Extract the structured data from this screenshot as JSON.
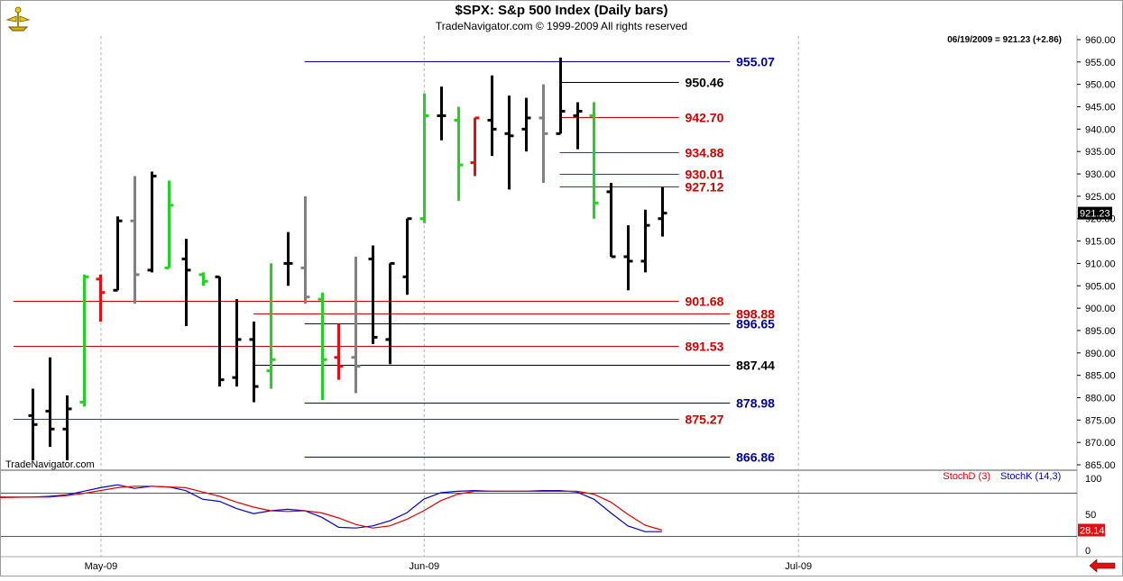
{
  "header": {
    "title": "$SPX:  S&p 500 Index  (Daily bars)",
    "subtitle": "TradeNavigator.com © 1999-2009 All rights reserved",
    "quote": "06/19/2009 = 921.23 (+2.86)",
    "watermark": "TradeNavigator.com"
  },
  "colors": {
    "up": "#1fd31f",
    "down": "#e01010",
    "neutral": "#000000",
    "inside": "#808080",
    "red_level": "#cc0000",
    "blue_level": "#00009a",
    "black_level": "#000000",
    "stochK": "#0000cc",
    "stochD": "#dd0000"
  },
  "chart_data": [
    {
      "type": "ohlc",
      "title": "$SPX:  S&p 500 Index  (Daily bars)",
      "ylim": [
        864,
        961
      ],
      "yticks": [
        "960.00",
        "955.00",
        "950.00",
        "945.00",
        "940.00",
        "935.00",
        "930.00",
        "925.00",
        "920.00",
        "915.00",
        "910.00",
        "905.00",
        "900.00",
        "895.00",
        "890.00",
        "885.00",
        "880.00",
        "875.00",
        "870.00",
        "865.00"
      ],
      "current_price_label": "921.23",
      "x_labels": [
        {
          "label": "May-09",
          "day": 4
        },
        {
          "label": "Jun-09",
          "day": 23
        },
        {
          "label": "Jul-09",
          "day": 45
        }
      ],
      "bars": [
        {
          "d": 0,
          "o": 876,
          "h": 882,
          "l": 866,
          "c": 874,
          "col": "neutral"
        },
        {
          "d": 1,
          "o": 877,
          "h": 889,
          "l": 869,
          "c": 873,
          "col": "neutral"
        },
        {
          "d": 2,
          "o": 873,
          "h": 880.5,
          "l": 866,
          "c": 877.5,
          "col": "neutral"
        },
        {
          "d": 3,
          "o": 879,
          "h": 907.5,
          "l": 878,
          "c": 907,
          "col": "up"
        },
        {
          "d": 4,
          "o": 906.5,
          "h": 907.5,
          "l": 897,
          "c": 903.5,
          "col": "down"
        },
        {
          "d": 5,
          "o": 904,
          "h": 920.5,
          "l": 904,
          "c": 919.5,
          "col": "neutral"
        },
        {
          "d": 6,
          "o": 919.5,
          "h": 929.5,
          "l": 901,
          "c": 907.5,
          "col": "inside"
        },
        {
          "d": 7,
          "o": 908.5,
          "h": 930.5,
          "l": 908,
          "c": 929.5,
          "col": "neutral"
        },
        {
          "d": 8,
          "o": 909,
          "h": 928.5,
          "l": 909,
          "c": 923,
          "col": "up"
        },
        {
          "d": 9,
          "o": 911,
          "h": 915.5,
          "l": 896,
          "c": 908.5,
          "col": "neutral"
        },
        {
          "d": 10,
          "o": 907.5,
          "h": 908,
          "l": 905,
          "c": 906,
          "col": "up"
        },
        {
          "d": 11,
          "o": 907,
          "h": 907,
          "l": 882.5,
          "c": 884,
          "col": "neutral"
        },
        {
          "d": 12,
          "o": 884.5,
          "h": 902,
          "l": 882.5,
          "c": 893,
          "col": "neutral"
        },
        {
          "d": 13,
          "o": 893,
          "h": 897,
          "l": 879,
          "c": 882.5,
          "col": "neutral"
        },
        {
          "d": 14,
          "o": 886,
          "h": 910,
          "l": 882,
          "c": 888.5,
          "col": "up"
        },
        {
          "d": 15,
          "o": 910,
          "h": 917,
          "l": 905,
          "c": 910,
          "col": "neutral"
        },
        {
          "d": 16,
          "o": 909,
          "h": 925,
          "l": 901,
          "c": 902.5,
          "col": "inside"
        },
        {
          "d": 17,
          "o": 902,
          "h": 903.5,
          "l": 879.5,
          "c": 888.5,
          "col": "up"
        },
        {
          "d": 18,
          "o": 889,
          "h": 896.5,
          "l": 884,
          "c": 887,
          "col": "down"
        },
        {
          "d": 19,
          "o": 889,
          "h": 911.5,
          "l": 881,
          "c": 887,
          "col": "inside"
        },
        {
          "d": 20,
          "o": 911,
          "h": 914,
          "l": 892,
          "c": 893.5,
          "col": "neutral"
        },
        {
          "d": 21,
          "o": 893,
          "h": 910,
          "l": 887.5,
          "c": 910,
          "col": "neutral"
        },
        {
          "d": 22,
          "o": 907,
          "h": 920,
          "l": 903,
          "c": 920,
          "col": "neutral"
        },
        {
          "d": 23,
          "o": 920,
          "h": 948,
          "l": 919,
          "c": 943,
          "col": "up"
        },
        {
          "d": 24,
          "o": 943,
          "h": 949.5,
          "l": 937.5,
          "c": 943,
          "col": "neutral"
        },
        {
          "d": 25,
          "o": 942,
          "h": 945,
          "l": 924,
          "c": 932,
          "col": "up"
        },
        {
          "d": 26,
          "o": 932.5,
          "h": 942.5,
          "l": 929.5,
          "c": 942.5,
          "col": "down"
        },
        {
          "d": 27,
          "o": 942,
          "h": 952,
          "l": 934,
          "c": 940,
          "col": "neutral"
        },
        {
          "d": 28,
          "o": 939,
          "h": 947.5,
          "l": 926.5,
          "c": 938.5,
          "col": "neutral"
        },
        {
          "d": 29,
          "o": 940,
          "h": 947,
          "l": 935,
          "c": 942.5,
          "col": "neutral"
        },
        {
          "d": 30,
          "o": 942.5,
          "h": 950,
          "l": 928,
          "c": 939,
          "col": "inside"
        },
        {
          "d": 31,
          "o": 939,
          "h": 956,
          "l": 939,
          "c": 944,
          "col": "neutral"
        },
        {
          "d": 32,
          "o": 943,
          "h": 946,
          "l": 935.5,
          "c": 944,
          "col": "neutral"
        },
        {
          "d": 33,
          "o": 943,
          "h": 946,
          "l": 920,
          "c": 923.5,
          "col": "up"
        },
        {
          "d": 34,
          "o": 926,
          "h": 928,
          "l": 911.5,
          "c": 911.5,
          "col": "neutral"
        },
        {
          "d": 35,
          "o": 911.5,
          "h": 918.5,
          "l": 904,
          "c": 910.5,
          "col": "neutral"
        },
        {
          "d": 36,
          "o": 910.5,
          "h": 922,
          "l": 908,
          "c": 918.5,
          "col": "neutral"
        },
        {
          "d": 37,
          "o": 920,
          "h": 927,
          "l": 916,
          "c": 921.23,
          "col": "neutral"
        }
      ],
      "levels": [
        {
          "value": 955.07,
          "label": "955.07",
          "color": "blue_level",
          "d0": 16,
          "d1": 41,
          "label_d": 42.5
        },
        {
          "value": 950.46,
          "label": "950.46",
          "color": "black_level",
          "d0": 31,
          "d1": 38,
          "label_d": 39.5
        },
        {
          "value": 942.7,
          "label": "942.70",
          "color": "red_level",
          "d0": 31,
          "d1": 38,
          "label_d": 39.5
        },
        {
          "value": 934.88,
          "label": "934.88",
          "color": "red_level",
          "d0": 31,
          "d1": 38,
          "label_d": 39.5
        },
        {
          "value": 930.01,
          "label": "930.01",
          "color": "red_level",
          "d0": 31,
          "d1": 38,
          "label_d": 39.5
        },
        {
          "value": 927.12,
          "label": "927.12",
          "color": "red_level",
          "d0": 31,
          "d1": 38,
          "label_d": 39.5
        },
        {
          "value": 901.68,
          "label": "901.68",
          "color": "red_level",
          "d0": -2.6,
          "d1": 38,
          "label_d": 39.5
        },
        {
          "value": 898.88,
          "label": "898.88",
          "color": "red_level",
          "d0": 13,
          "d1": 41,
          "label_d": 42.5
        },
        {
          "value": 896.65,
          "label": "896.65",
          "color": "blue_level",
          "d0": 16,
          "d1": 41,
          "label_d": 42.5
        },
        {
          "value": 891.53,
          "label": "891.53",
          "color": "red_level",
          "d0": -2.6,
          "d1": 38,
          "label_d": 39.5
        },
        {
          "value": 887.44,
          "label": "887.44",
          "color": "black_level",
          "d0": 13,
          "d1": 41,
          "label_d": 42.5
        },
        {
          "value": 878.98,
          "label": "878.98",
          "color": "blue_level",
          "d0": 16,
          "d1": 41,
          "label_d": 42.5
        },
        {
          "value": 875.27,
          "label": "875.27",
          "color": "red_level",
          "d0": -2.6,
          "d1": 38,
          "label_d": 39.5
        },
        {
          "value": 866.86,
          "label": "866.86",
          "color": "blue_level",
          "d0": 16,
          "d1": 41,
          "label_d": 42.5
        }
      ]
    },
    {
      "type": "line",
      "name": "Stochastic",
      "ylim": [
        -5,
        110
      ],
      "yticks": [
        "100",
        "50",
        "0"
      ],
      "reference_lines": [
        80,
        20
      ],
      "current_value_label": "28.14",
      "legend": [
        {
          "label": "StochD (3)",
          "color": "stochD"
        },
        {
          "label": "StochK (14,3)",
          "color": "stochK"
        }
      ],
      "series": [
        {
          "name": "StochK (14,3)",
          "color": "stochK",
          "x": [
            -2.6,
            0,
            1,
            2,
            3,
            4,
            5,
            6,
            7,
            8,
            9,
            10,
            11,
            12,
            13,
            14,
            15,
            16,
            17,
            18,
            19,
            20,
            21,
            22,
            23,
            24,
            25,
            26,
            27,
            28,
            29,
            30,
            31,
            32,
            33,
            34,
            35,
            36,
            37
          ],
          "values": [
            74,
            74,
            75,
            77,
            82,
            87,
            91,
            86,
            89,
            88,
            83,
            71,
            68,
            58,
            51,
            55,
            57,
            55,
            46,
            32,
            31,
            34,
            41,
            52,
            71,
            80,
            82,
            83,
            82,
            82,
            82,
            83,
            83,
            81,
            71,
            52,
            34,
            26,
            26
          ]
        },
        {
          "name": "StochD (3)",
          "color": "stochD",
          "x": [
            -2.6,
            0,
            1,
            2,
            3,
            4,
            5,
            6,
            7,
            8,
            9,
            10,
            11,
            12,
            13,
            14,
            15,
            16,
            17,
            18,
            19,
            20,
            21,
            22,
            23,
            24,
            25,
            26,
            27,
            28,
            29,
            30,
            31,
            32,
            33,
            34,
            35,
            36,
            37
          ],
          "values": [
            73,
            74,
            74,
            76,
            79,
            83,
            87,
            89,
            89,
            88,
            87,
            81,
            75,
            67,
            60,
            55,
            54,
            55,
            52,
            45,
            36,
            31,
            34,
            43,
            55,
            69,
            78,
            82,
            82,
            82,
            82,
            82,
            82,
            82,
            78,
            67,
            50,
            35,
            28.14
          ]
        }
      ]
    }
  ]
}
